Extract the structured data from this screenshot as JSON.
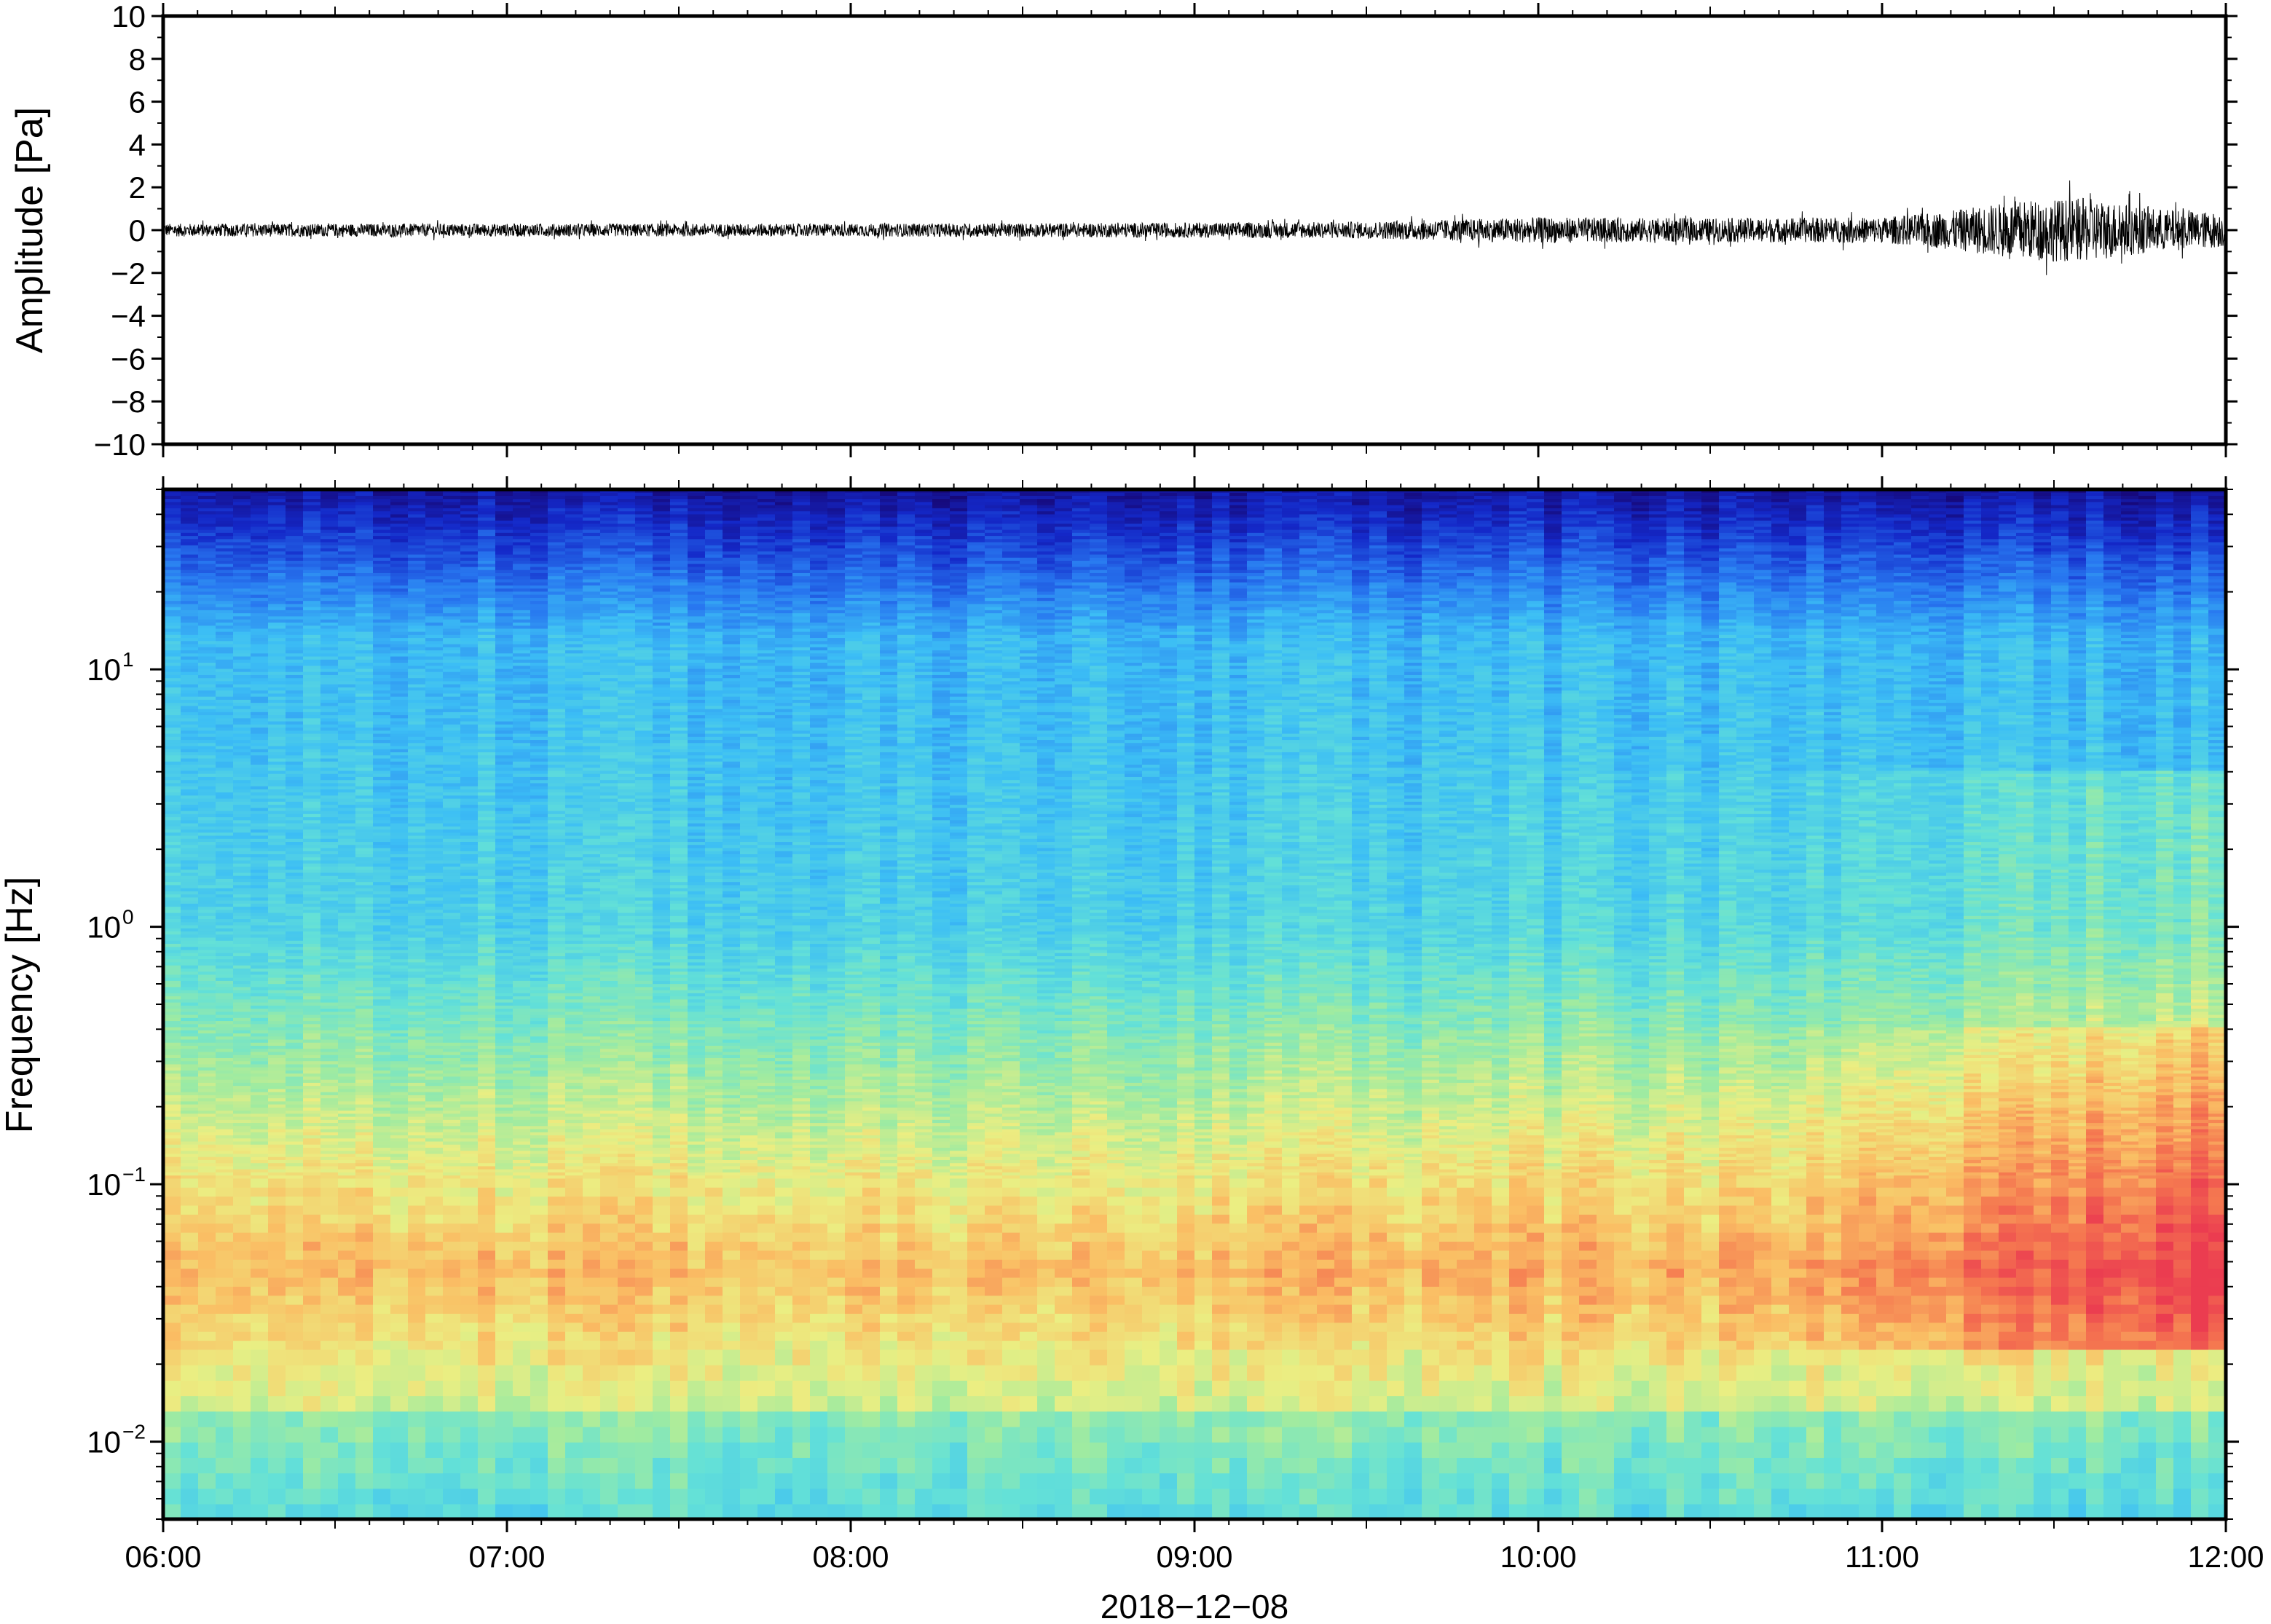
{
  "chart_data": [
    {
      "type": "line",
      "name": "waveform",
      "ylabel": "Amplitude [Pa]",
      "ylim": [
        -10,
        10
      ],
      "yticks": [
        "10",
        "8",
        "6",
        "4",
        "2",
        "0",
        "−2",
        "−4",
        "−6",
        "−8",
        "−10"
      ],
      "ytick_values": [
        10,
        8,
        6,
        4,
        2,
        0,
        -2,
        -4,
        -6,
        -8,
        -10
      ],
      "xlim": [
        "06:00",
        "12:00"
      ],
      "envelope": {
        "time_hours": [
          6.0,
          7.0,
          8.0,
          9.0,
          9.5,
          10.0,
          10.5,
          11.0,
          11.2,
          11.4,
          11.6,
          11.8,
          12.0
        ],
        "amplitude_pa": [
          0.3,
          0.3,
          0.3,
          0.35,
          0.4,
          0.6,
          0.55,
          0.6,
          0.9,
          1.4,
          1.5,
          1.0,
          0.8
        ]
      }
    },
    {
      "type": "heatmap",
      "name": "spectrogram",
      "ylabel": "Frequency [Hz]",
      "yscale": "log",
      "ylim": [
        0.005,
        50
      ],
      "yticks": [
        {
          "base": "10",
          "exp": "1",
          "value": 10
        },
        {
          "base": "10",
          "exp": "0",
          "value": 1
        },
        {
          "base": "10",
          "exp": "−1",
          "value": 0.1
        },
        {
          "base": "10",
          "exp": "−2",
          "value": 0.01
        }
      ],
      "xlabel": "2018−12−08",
      "xticks": [
        "06:00",
        "07:00",
        "08:00",
        "09:00",
        "10:00",
        "11:00",
        "12:00"
      ],
      "colormap": "rainbow (blue low – red high)"
    }
  ],
  "colors": {
    "frame": "#000000",
    "trace": "#000000",
    "cmap_low": "#1a0a8c",
    "cmap_high": "#f04050"
  }
}
